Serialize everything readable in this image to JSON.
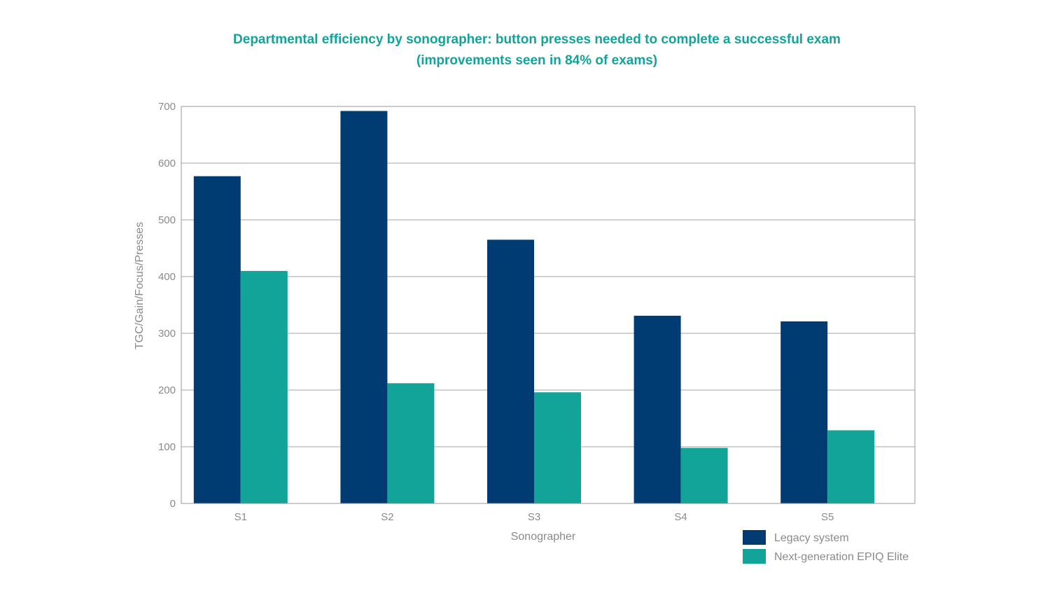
{
  "chart_data": {
    "type": "bar",
    "title_line1": "Departmental efficiency by sonographer: button presses needed to complete a successful exam",
    "title_line2": "(improvements seen in 84% of exams)",
    "xlabel": "Sonographer",
    "ylabel": "TGC/Gain/Focus/Presses",
    "categories": [
      "S1",
      "S2",
      "S3",
      "S4",
      "S5"
    ],
    "ylim": [
      0,
      700
    ],
    "yticks": [
      0,
      100,
      200,
      300,
      400,
      500,
      600,
      700
    ],
    "grid": true,
    "legend_position": "bottom-right",
    "series": [
      {
        "name": "Legacy system",
        "color": "#003c71",
        "values": [
          577,
          692,
          465,
          331,
          321
        ]
      },
      {
        "name": "Next-generation EPIQ Elite",
        "color": "#12a499",
        "values": [
          410,
          212,
          196,
          98,
          129
        ]
      }
    ]
  }
}
